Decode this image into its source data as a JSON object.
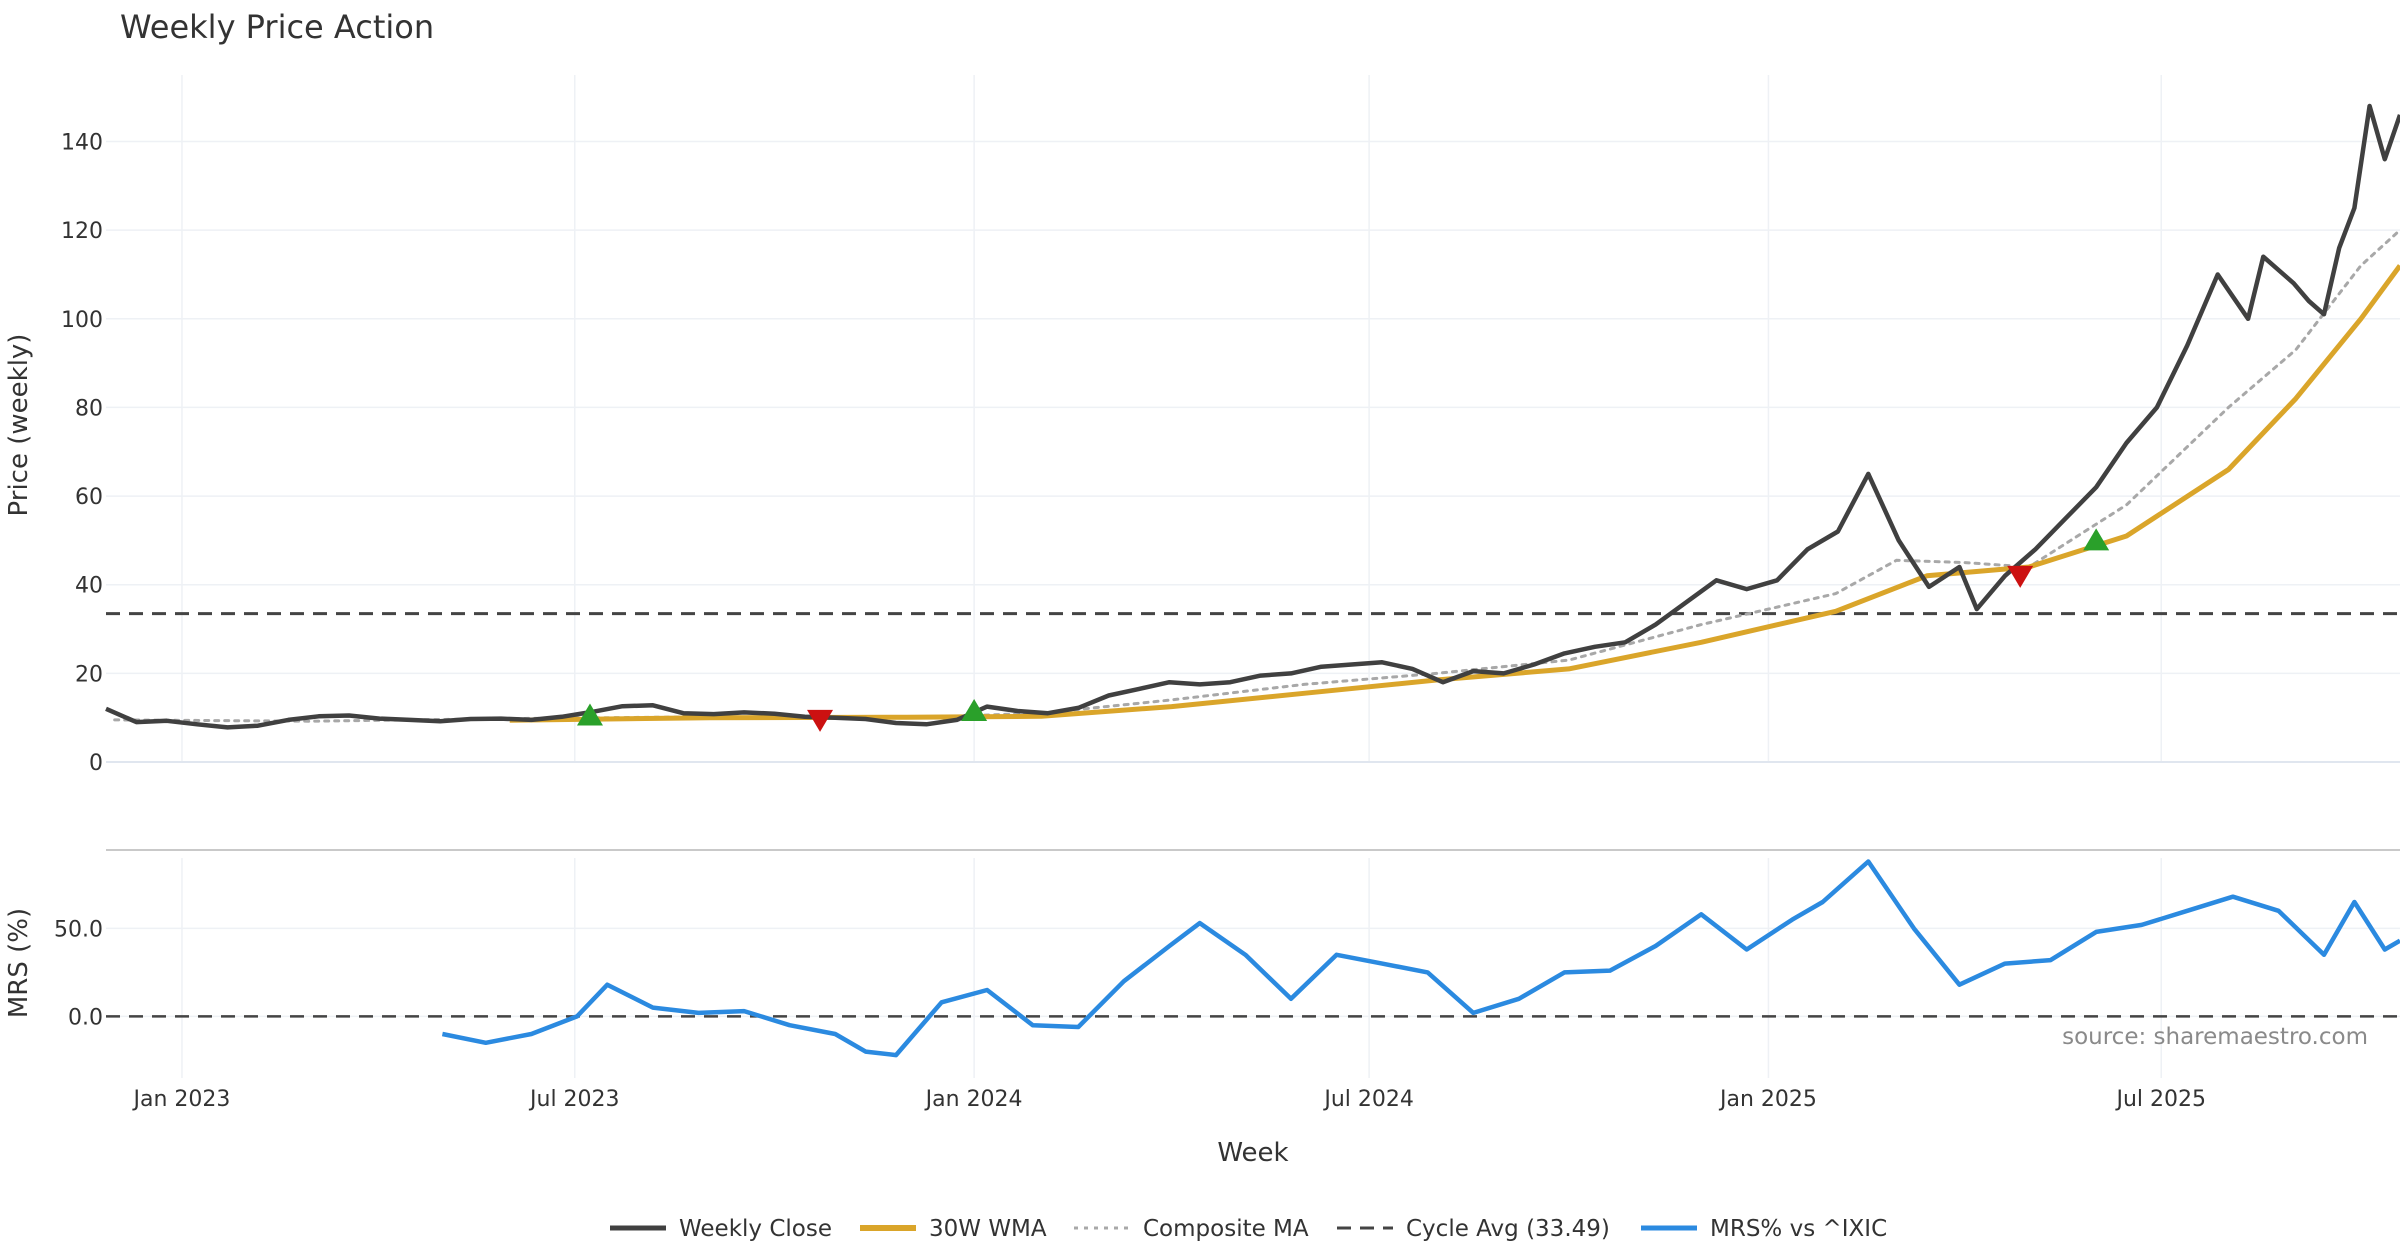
{
  "chart_data": {
    "type": "line",
    "title": "Weekly Price Action",
    "xlabel": "Week",
    "source": "source: sharemaestro.com",
    "x_tick_labels": [
      "Jan 2023",
      "Jul 2023",
      "Jan 2024",
      "Jul 2024",
      "Jan 2025",
      "Jul 2025"
    ],
    "x_tick_dates": [
      "2023-01-01",
      "2023-07-01",
      "2024-01-01",
      "2024-07-01",
      "2025-01-01",
      "2025-07-01"
    ],
    "x_range": [
      "2022-11-27",
      "2025-10-19"
    ],
    "panels": [
      {
        "name": "price",
        "ylabel": "Price (weekly)",
        "ylim": [
          0,
          155
        ],
        "y_ticks": [
          0,
          20,
          40,
          60,
          80,
          100,
          120,
          140
        ]
      },
      {
        "name": "mrs",
        "ylabel": "MRS (%)",
        "ylim": [
          -35,
          90
        ],
        "y_ticks": [
          0,
          50
        ],
        "y_tick_labels": [
          "0.0",
          "50.0"
        ]
      }
    ],
    "cycle_avg": 33.49,
    "series": [
      {
        "name": "Weekly Close",
        "panel": "price",
        "color": "#404040",
        "points": [
          [
            "2022-11-27",
            12.0
          ],
          [
            "2022-12-11",
            9.0
          ],
          [
            "2022-12-25",
            9.3
          ],
          [
            "2023-01-08",
            8.5
          ],
          [
            "2023-01-22",
            7.8
          ],
          [
            "2023-02-05",
            8.2
          ],
          [
            "2023-02-19",
            9.5
          ],
          [
            "2023-03-05",
            10.3
          ],
          [
            "2023-03-19",
            10.5
          ],
          [
            "2023-04-02",
            9.8
          ],
          [
            "2023-04-16",
            9.5
          ],
          [
            "2023-04-30",
            9.2
          ],
          [
            "2023-05-14",
            9.7
          ],
          [
            "2023-05-28",
            9.8
          ],
          [
            "2023-06-11",
            9.5
          ],
          [
            "2023-06-25",
            10.2
          ],
          [
            "2023-07-09",
            11.3
          ],
          [
            "2023-07-23",
            12.6
          ],
          [
            "2023-08-06",
            12.8
          ],
          [
            "2023-08-20",
            11.0
          ],
          [
            "2023-09-03",
            10.8
          ],
          [
            "2023-09-17",
            11.2
          ],
          [
            "2023-10-01",
            10.9
          ],
          [
            "2023-10-15",
            10.2
          ],
          [
            "2023-10-29",
            10.0
          ],
          [
            "2023-11-12",
            9.7
          ],
          [
            "2023-11-26",
            8.8
          ],
          [
            "2023-12-10",
            8.5
          ],
          [
            "2023-12-24",
            9.5
          ],
          [
            "2024-01-07",
            12.5
          ],
          [
            "2024-01-21",
            11.5
          ],
          [
            "2024-02-04",
            11.0
          ],
          [
            "2024-02-18",
            12.2
          ],
          [
            "2024-03-03",
            15.0
          ],
          [
            "2024-03-17",
            16.5
          ],
          [
            "2024-03-31",
            18.0
          ],
          [
            "2024-04-14",
            17.5
          ],
          [
            "2024-04-28",
            18.0
          ],
          [
            "2024-05-12",
            19.5
          ],
          [
            "2024-05-26",
            20.0
          ],
          [
            "2024-06-09",
            21.5
          ],
          [
            "2024-06-23",
            22.0
          ],
          [
            "2024-07-07",
            22.5
          ],
          [
            "2024-07-21",
            21.0
          ],
          [
            "2024-08-04",
            18.0
          ],
          [
            "2024-08-18",
            20.5
          ],
          [
            "2024-09-01",
            20.0
          ],
          [
            "2024-09-15",
            22.0
          ],
          [
            "2024-09-29",
            24.5
          ],
          [
            "2024-10-13",
            26.0
          ],
          [
            "2024-10-27",
            27.0
          ],
          [
            "2024-11-10",
            31.0
          ],
          [
            "2024-11-24",
            36.0
          ],
          [
            "2024-12-08",
            41.0
          ],
          [
            "2024-12-22",
            39.0
          ],
          [
            "2025-01-05",
            41.0
          ],
          [
            "2025-01-19",
            48.0
          ],
          [
            "2025-02-02",
            52.0
          ],
          [
            "2025-02-16",
            65.0
          ],
          [
            "2025-03-02",
            50.0
          ],
          [
            "2025-03-16",
            39.5
          ],
          [
            "2025-03-30",
            44.0
          ],
          [
            "2025-04-07",
            34.5
          ],
          [
            "2025-04-20",
            42.0
          ],
          [
            "2025-05-04",
            48.0
          ],
          [
            "2025-05-18",
            55.0
          ],
          [
            "2025-06-01",
            62.0
          ],
          [
            "2025-06-15",
            72.0
          ],
          [
            "2025-06-29",
            80.0
          ],
          [
            "2025-07-13",
            94.0
          ],
          [
            "2025-07-27",
            110.0
          ],
          [
            "2025-08-10",
            100.0
          ],
          [
            "2025-08-17",
            114.0
          ],
          [
            "2025-08-31",
            108.0
          ],
          [
            "2025-09-07",
            104.0
          ],
          [
            "2025-09-14",
            101.0
          ],
          [
            "2025-09-21",
            116.0
          ],
          [
            "2025-09-28",
            125.0
          ],
          [
            "2025-10-05",
            148.0
          ],
          [
            "2025-10-12",
            136.0
          ],
          [
            "2025-10-19",
            146.0
          ]
        ]
      },
      {
        "name": "30W WMA",
        "panel": "price",
        "color": "#daa52a",
        "points": [
          [
            "2023-06-01",
            9.4
          ],
          [
            "2023-09-01",
            10.0
          ],
          [
            "2023-12-01",
            10.1
          ],
          [
            "2024-02-01",
            10.3
          ],
          [
            "2024-04-01",
            12.5
          ],
          [
            "2024-06-01",
            15.5
          ],
          [
            "2024-08-01",
            18.5
          ],
          [
            "2024-10-01",
            21.0
          ],
          [
            "2024-12-01",
            27.0
          ],
          [
            "2025-02-01",
            34.0
          ],
          [
            "2025-03-15",
            42.0
          ],
          [
            "2025-05-01",
            44.0
          ],
          [
            "2025-06-15",
            51.0
          ],
          [
            "2025-08-01",
            66.0
          ],
          [
            "2025-09-01",
            82.0
          ],
          [
            "2025-10-01",
            100.0
          ],
          [
            "2025-10-19",
            112.0
          ]
        ]
      },
      {
        "name": "Composite MA",
        "panel": "price",
        "color": "#a8a8a8",
        "points": [
          [
            "2022-12-01",
            9.5
          ],
          [
            "2023-03-01",
            9.2
          ],
          [
            "2023-06-01",
            9.8
          ],
          [
            "2023-09-01",
            10.2
          ],
          [
            "2023-12-01",
            10.0
          ],
          [
            "2024-02-01",
            11.0
          ],
          [
            "2024-04-01",
            14.0
          ],
          [
            "2024-06-01",
            17.5
          ],
          [
            "2024-08-01",
            20.0
          ],
          [
            "2024-10-01",
            23.0
          ],
          [
            "2024-12-01",
            31.0
          ],
          [
            "2025-02-01",
            38.0
          ],
          [
            "2025-03-01",
            45.5
          ],
          [
            "2025-04-01",
            45.0
          ],
          [
            "2025-05-01",
            44.0
          ],
          [
            "2025-06-15",
            58.0
          ],
          [
            "2025-08-01",
            80.0
          ],
          [
            "2025-09-01",
            93.0
          ],
          [
            "2025-10-01",
            112.0
          ],
          [
            "2025-10-19",
            120.0
          ]
        ]
      },
      {
        "name": "Cycle Avg (33.49)",
        "panel": "price",
        "color": "#444444",
        "value": 33.49
      },
      {
        "name": "MRS% vs ^IXIC",
        "panel": "mrs",
        "color": "#2b8ae0",
        "points": [
          [
            "2023-05-01",
            -10
          ],
          [
            "2023-05-21",
            -15
          ],
          [
            "2023-06-11",
            -10
          ],
          [
            "2023-07-02",
            0
          ],
          [
            "2023-07-16",
            18
          ],
          [
            "2023-08-06",
            5
          ],
          [
            "2023-08-27",
            2
          ],
          [
            "2023-09-17",
            3
          ],
          [
            "2023-10-08",
            -5
          ],
          [
            "2023-10-29",
            -10
          ],
          [
            "2023-11-12",
            -20
          ],
          [
            "2023-11-26",
            -22
          ],
          [
            "2023-12-17",
            8
          ],
          [
            "2024-01-07",
            15
          ],
          [
            "2024-01-28",
            -5
          ],
          [
            "2024-02-18",
            -6
          ],
          [
            "2024-03-10",
            20
          ],
          [
            "2024-03-31",
            40
          ],
          [
            "2024-04-14",
            53
          ],
          [
            "2024-05-05",
            35
          ],
          [
            "2024-05-26",
            10
          ],
          [
            "2024-06-16",
            35
          ],
          [
            "2024-07-07",
            30
          ],
          [
            "2024-07-28",
            25
          ],
          [
            "2024-08-18",
            2
          ],
          [
            "2024-09-08",
            10
          ],
          [
            "2024-09-29",
            25
          ],
          [
            "2024-10-20",
            26
          ],
          [
            "2024-11-10",
            40
          ],
          [
            "2024-12-01",
            58
          ],
          [
            "2024-12-22",
            38
          ],
          [
            "2025-01-12",
            55
          ],
          [
            "2025-01-26",
            65
          ],
          [
            "2025-02-16",
            88
          ],
          [
            "2025-03-09",
            50
          ],
          [
            "2025-03-30",
            18
          ],
          [
            "2025-04-20",
            30
          ],
          [
            "2025-05-11",
            32
          ],
          [
            "2025-06-01",
            48
          ],
          [
            "2025-06-22",
            52
          ],
          [
            "2025-07-13",
            60
          ],
          [
            "2025-08-03",
            68
          ],
          [
            "2025-08-24",
            60
          ],
          [
            "2025-09-14",
            35
          ],
          [
            "2025-09-28",
            65
          ],
          [
            "2025-10-12",
            38
          ],
          [
            "2025-10-19",
            43
          ]
        ]
      }
    ],
    "signals": {
      "buy": [
        [
          "2023-07-08",
          10.5
        ],
        [
          "2024-01-01",
          11.5
        ],
        [
          "2025-06-01",
          50
        ]
      ],
      "sell": [
        [
          "2023-10-22",
          9.5
        ],
        [
          "2025-04-27",
          42.0
        ]
      ],
      "buy_color": "#2aa02a",
      "sell_color": "#cc1111"
    },
    "legend": {
      "placement": "bottom-center",
      "items": [
        "Weekly Close",
        "30W WMA",
        "Composite MA",
        "Cycle Avg (33.49)",
        "MRS% vs ^IXIC"
      ]
    }
  }
}
